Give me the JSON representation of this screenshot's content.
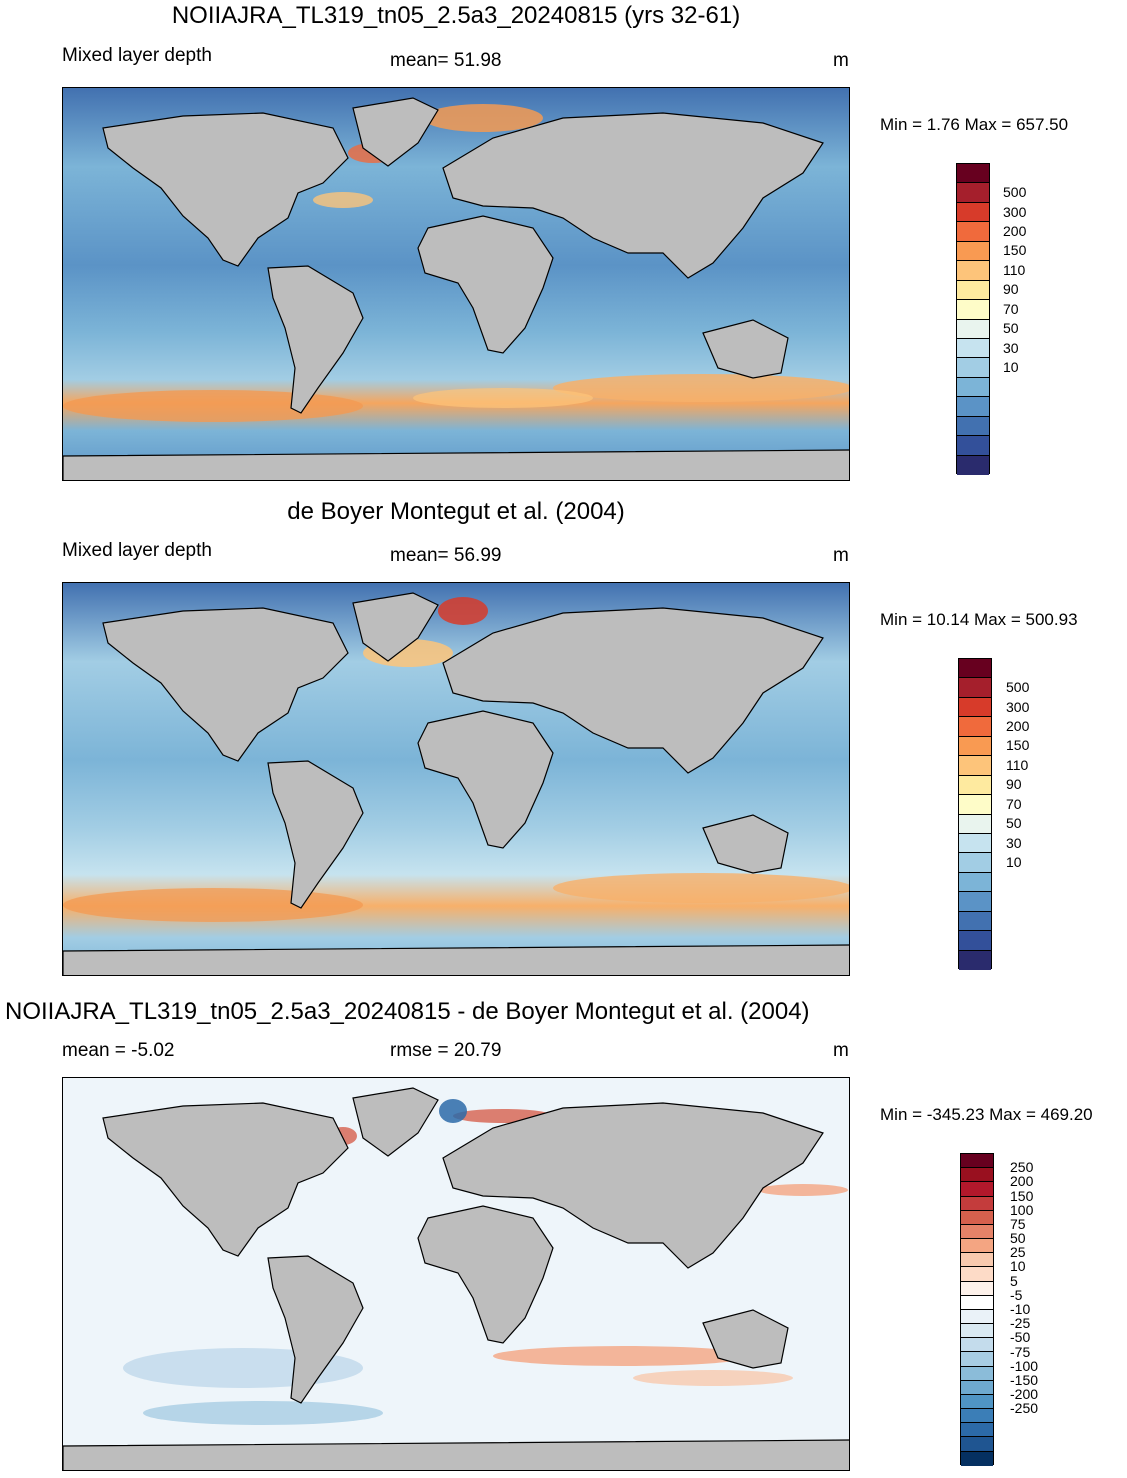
{
  "panels": [
    {
      "title": "NOIIAJRA_TL319_tn05_2.5a3_20240815 (yrs 32-61)",
      "left_label": "Mixed layer depth",
      "center_label": "mean=  51.98",
      "units": "m",
      "minmax": "Min =   1.76 Max = 657.50",
      "ocean_color": "#6d9ccc",
      "colorbar": {
        "colors": [
          "#67001f",
          "#a51f2c",
          "#d73b2a",
          "#f06a3c",
          "#f99a52",
          "#fdc47a",
          "#feea9f",
          "#fefcc8",
          "#e9f4ee",
          "#c6e3ef",
          "#a2cde4",
          "#7cb4d7",
          "#5b93c6",
          "#4271b0",
          "#33509a",
          "#2a2b6d"
        ],
        "labels": [
          "500",
          "300",
          "200",
          "150",
          "110",
          "90",
          "70",
          "50",
          "30",
          "10"
        ]
      },
      "map_features": [
        {
          "type": "band",
          "name": "southern-ocean-deep-band",
          "color": "#f5a65f"
        },
        {
          "type": "band",
          "name": "north-atlantic-deep",
          "color": "#f39a52"
        }
      ]
    },
    {
      "title": "de Boyer Montegut et al. (2004)",
      "left_label": "Mixed layer depth",
      "center_label": "mean=  56.99",
      "units": "m",
      "minmax": "Min =  10.14 Max = 500.93",
      "ocean_color": "#7aa7d2",
      "colorbar": {
        "colors": [
          "#67001f",
          "#a51f2c",
          "#d73b2a",
          "#f06a3c",
          "#f99a52",
          "#fdc47a",
          "#feea9f",
          "#fefcc8",
          "#e9f4ee",
          "#c6e3ef",
          "#a2cde4",
          "#7cb4d7",
          "#5b93c6",
          "#4271b0",
          "#33509a",
          "#2a2b6d"
        ],
        "labels": [
          "500",
          "300",
          "200",
          "150",
          "110",
          "90",
          "70",
          "50",
          "30",
          "10"
        ]
      }
    },
    {
      "title": "NOIIAJRA_TL319_tn05_2.5a3_20240815 - de Boyer Montegut et al. (2004)",
      "left_label": "mean =  -5.02",
      "center_label": "rmse =  20.79",
      "units": "m",
      "minmax": "Min = -345.23 Max = 469.20",
      "ocean_color": "#eaf2f8",
      "colorbar": {
        "colors": [
          "#67001f",
          "#99101f",
          "#b2182b",
          "#c43c3c",
          "#d6604d",
          "#e58268",
          "#f4a582",
          "#f8c9ae",
          "#fddbc7",
          "#fdf1ea",
          "#ffffff",
          "#eaf2f8",
          "#d9e9f2",
          "#c4dcec",
          "#a8cde3",
          "#8bbcd9",
          "#6ea9cf",
          "#4f94c4",
          "#3b7eb7",
          "#2c6aa8",
          "#1f5591",
          "#053061"
        ],
        "labels": [
          "250",
          "200",
          "150",
          "100",
          "75",
          "50",
          "25",
          "10",
          "5",
          "-5",
          "-10",
          "-25",
          "-50",
          "-75",
          "-100",
          "-150",
          "-200",
          "-250"
        ]
      }
    }
  ]
}
